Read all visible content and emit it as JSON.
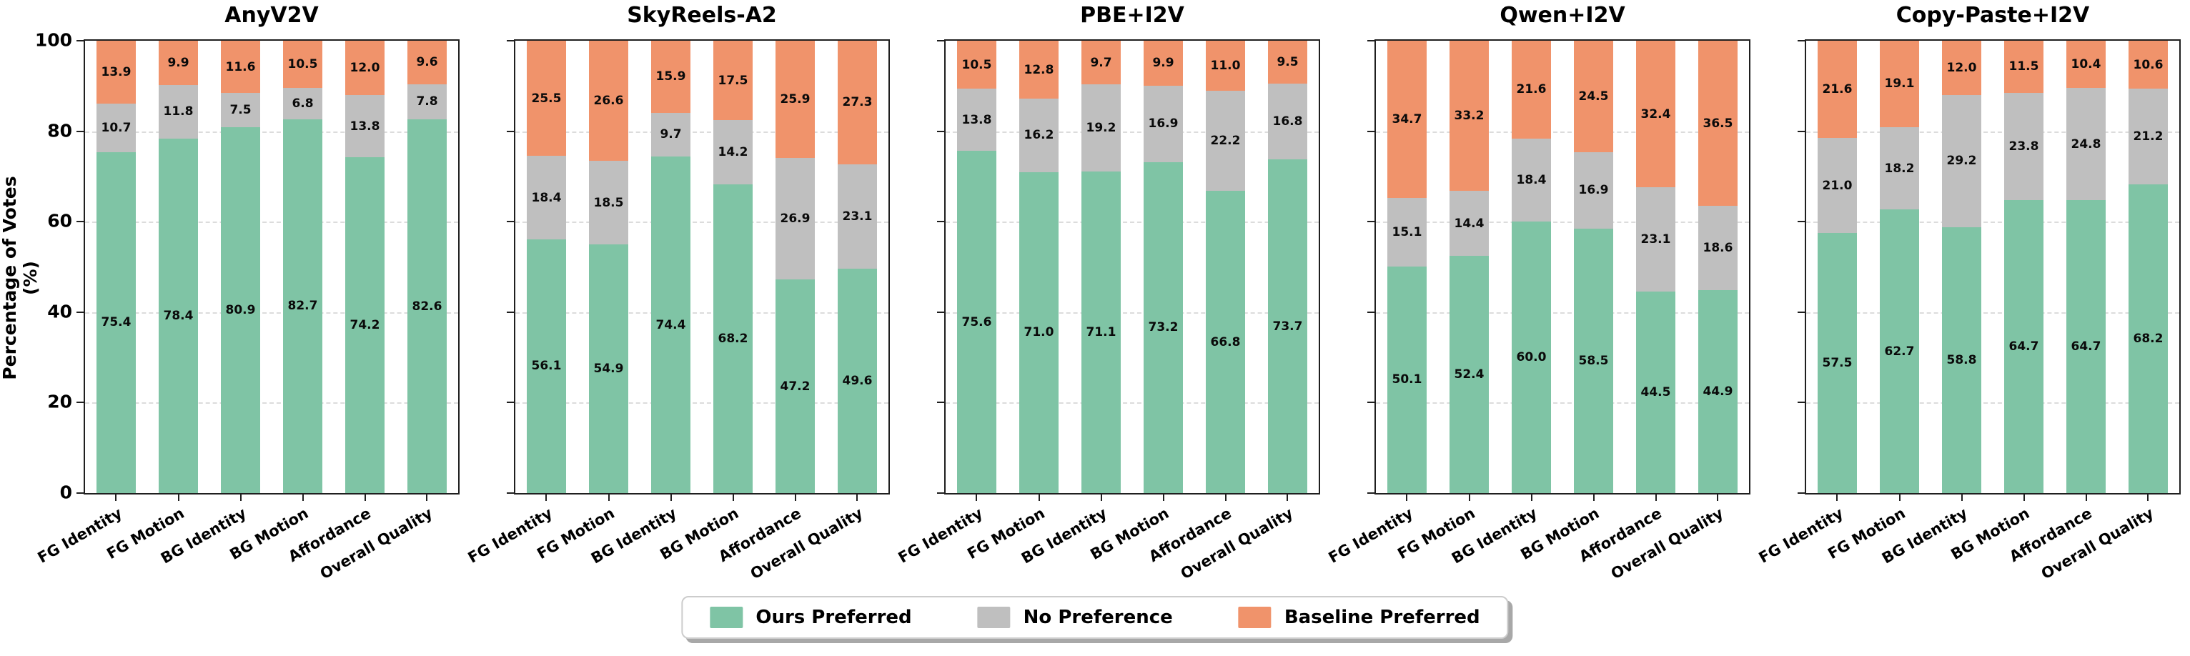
{
  "chart_data": {
    "type": "bar",
    "stacked": true,
    "ylabel": "Percentage of Votes (%)",
    "ylim": [
      0,
      100
    ],
    "yticks": [
      0,
      20,
      40,
      60,
      80,
      100
    ],
    "grid": "horizontal dashed at 20,40,60,80",
    "categories": [
      "FG Identity",
      "FG Motion",
      "BG Identity",
      "BG Motion",
      "Affordance",
      "Overall Quality"
    ],
    "legend": {
      "position": "bottom center",
      "entries": [
        {
          "label": "Ours Preferred",
          "color": "#7FC4A5"
        },
        {
          "label": "No Preference",
          "color": "#BFBFBF"
        },
        {
          "label": "Baseline Preferred",
          "color": "#F0936B"
        }
      ]
    },
    "panels": [
      {
        "title": "AnyV2V",
        "series": [
          {
            "name": "Ours Preferred",
            "values": [
              75.4,
              78.4,
              80.9,
              82.7,
              74.2,
              82.6
            ]
          },
          {
            "name": "No Preference",
            "values": [
              10.7,
              11.8,
              7.5,
              6.8,
              13.8,
              7.8
            ]
          },
          {
            "name": "Baseline Preferred",
            "values": [
              13.9,
              9.9,
              11.6,
              10.5,
              12.0,
              9.6
            ]
          }
        ]
      },
      {
        "title": "SkyReels-A2",
        "series": [
          {
            "name": "Ours Preferred",
            "values": [
              56.1,
              54.9,
              74.4,
              68.2,
              47.2,
              49.6
            ]
          },
          {
            "name": "No Preference",
            "values": [
              18.4,
              18.5,
              9.7,
              14.2,
              26.9,
              23.1
            ]
          },
          {
            "name": "Baseline Preferred",
            "values": [
              25.5,
              26.6,
              15.9,
              17.5,
              25.9,
              27.3
            ]
          }
        ]
      },
      {
        "title": "PBE+I2V",
        "series": [
          {
            "name": "Ours Preferred",
            "values": [
              75.6,
              71.0,
              71.1,
              73.2,
              66.8,
              73.7
            ]
          },
          {
            "name": "No Preference",
            "values": [
              13.8,
              16.2,
              19.2,
              16.9,
              22.2,
              16.8
            ]
          },
          {
            "name": "Baseline Preferred",
            "values": [
              10.5,
              12.8,
              9.7,
              9.9,
              11.0,
              9.5
            ]
          }
        ]
      },
      {
        "title": "Qwen+I2V",
        "series": [
          {
            "name": "Ours Preferred",
            "values": [
              50.1,
              52.4,
              60.0,
              58.5,
              44.5,
              44.9
            ]
          },
          {
            "name": "No Preference",
            "values": [
              15.1,
              14.4,
              18.4,
              16.9,
              23.1,
              18.6
            ]
          },
          {
            "name": "Baseline Preferred",
            "values": [
              34.7,
              33.2,
              21.6,
              24.5,
              32.4,
              36.5
            ]
          }
        ]
      },
      {
        "title": "Copy-Paste+I2V",
        "series": [
          {
            "name": "Ours Preferred",
            "values": [
              57.5,
              62.7,
              58.8,
              64.7,
              64.7,
              68.2
            ]
          },
          {
            "name": "No Preference",
            "values": [
              21.0,
              18.2,
              29.2,
              23.8,
              24.8,
              21.2
            ]
          },
          {
            "name": "Baseline Preferred",
            "values": [
              21.6,
              19.1,
              12.0,
              11.5,
              10.4,
              10.6
            ]
          }
        ]
      }
    ]
  }
}
